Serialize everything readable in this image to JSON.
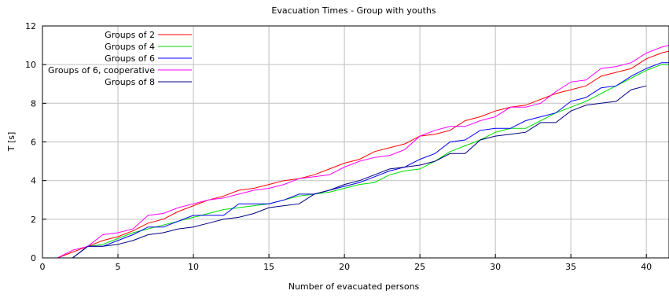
{
  "chart_data": {
    "type": "line",
    "title": "Evacuation Times - Group with youths",
    "xlabel": "Number of evacuated persons",
    "ylabel": "T [s]",
    "xlim": [
      0,
      41.5
    ],
    "ylim": [
      0,
      12
    ],
    "x_ticks": [
      0,
      5,
      10,
      15,
      20,
      25,
      30,
      35,
      40
    ],
    "y_ticks": [
      0,
      2,
      4,
      6,
      8,
      10,
      12
    ],
    "grid": true,
    "legend_position": "top-left",
    "series": [
      {
        "name": "Groups of 2",
        "color": "#ff0000",
        "points": [
          [
            1,
            0.0
          ],
          [
            2,
            0.3
          ],
          [
            3,
            0.6
          ],
          [
            4,
            0.9
          ],
          [
            5,
            1.1
          ],
          [
            6,
            1.4
          ],
          [
            7,
            1.8
          ],
          [
            8,
            2.0
          ],
          [
            9,
            2.4
          ],
          [
            10,
            2.7
          ],
          [
            11,
            3.0
          ],
          [
            12,
            3.2
          ],
          [
            13,
            3.5
          ],
          [
            14,
            3.6
          ],
          [
            15,
            3.8
          ],
          [
            16,
            4.0
          ],
          [
            17,
            4.1
          ],
          [
            18,
            4.3
          ],
          [
            19,
            4.6
          ],
          [
            20,
            4.9
          ],
          [
            21,
            5.1
          ],
          [
            22,
            5.5
          ],
          [
            23,
            5.7
          ],
          [
            24,
            5.9
          ],
          [
            25,
            6.3
          ],
          [
            26,
            6.4
          ],
          [
            27,
            6.6
          ],
          [
            28,
            7.1
          ],
          [
            29,
            7.3
          ],
          [
            30,
            7.6
          ],
          [
            31,
            7.8
          ],
          [
            32,
            7.9
          ],
          [
            33,
            8.2
          ],
          [
            34,
            8.5
          ],
          [
            35,
            8.7
          ],
          [
            36,
            8.9
          ],
          [
            37,
            9.4
          ],
          [
            38,
            9.6
          ],
          [
            39,
            9.8
          ],
          [
            40,
            10.3
          ],
          [
            41,
            10.6
          ],
          [
            41.5,
            10.7
          ]
        ]
      },
      {
        "name": "Groups of 4",
        "color": "#00dd00",
        "points": [
          [
            2,
            0.0
          ],
          [
            3,
            0.6
          ],
          [
            4,
            0.7
          ],
          [
            5,
            1.0
          ],
          [
            6,
            1.3
          ],
          [
            7,
            1.5
          ],
          [
            8,
            1.7
          ],
          [
            9,
            1.9
          ],
          [
            10,
            2.1
          ],
          [
            11,
            2.3
          ],
          [
            12,
            2.5
          ],
          [
            13,
            2.6
          ],
          [
            14,
            2.7
          ],
          [
            15,
            2.8
          ],
          [
            16,
            3.0
          ],
          [
            17,
            3.2
          ],
          [
            18,
            3.3
          ],
          [
            19,
            3.4
          ],
          [
            20,
            3.6
          ],
          [
            21,
            3.8
          ],
          [
            22,
            3.9
          ],
          [
            23,
            4.3
          ],
          [
            24,
            4.5
          ],
          [
            25,
            4.6
          ],
          [
            26,
            5.0
          ],
          [
            27,
            5.5
          ],
          [
            28,
            5.8
          ],
          [
            29,
            6.1
          ],
          [
            30,
            6.5
          ],
          [
            31,
            6.7
          ],
          [
            32,
            6.7
          ],
          [
            33,
            7.1
          ],
          [
            34,
            7.5
          ],
          [
            35,
            7.8
          ],
          [
            36,
            8.1
          ],
          [
            37,
            8.5
          ],
          [
            38,
            8.9
          ],
          [
            39,
            9.3
          ],
          [
            40,
            9.7
          ],
          [
            41,
            10.0
          ],
          [
            41.5,
            10.0
          ]
        ]
      },
      {
        "name": "Groups of 6",
        "color": "#0000ff",
        "points": [
          [
            2,
            0.0
          ],
          [
            3,
            0.6
          ],
          [
            4,
            0.6
          ],
          [
            5,
            0.9
          ],
          [
            6,
            1.2
          ],
          [
            7,
            1.6
          ],
          [
            8,
            1.6
          ],
          [
            9,
            1.9
          ],
          [
            10,
            2.2
          ],
          [
            11,
            2.2
          ],
          [
            12,
            2.2
          ],
          [
            13,
            2.8
          ],
          [
            14,
            2.8
          ],
          [
            15,
            2.8
          ],
          [
            16,
            3.0
          ],
          [
            17,
            3.3
          ],
          [
            18,
            3.3
          ],
          [
            19,
            3.5
          ],
          [
            20,
            3.7
          ],
          [
            21,
            3.9
          ],
          [
            22,
            4.2
          ],
          [
            23,
            4.5
          ],
          [
            24,
            4.7
          ],
          [
            25,
            5.1
          ],
          [
            26,
            5.4
          ],
          [
            27,
            6.0
          ],
          [
            28,
            6.1
          ],
          [
            29,
            6.6
          ],
          [
            30,
            6.7
          ],
          [
            31,
            6.7
          ],
          [
            32,
            7.1
          ],
          [
            33,
            7.3
          ],
          [
            34,
            7.5
          ],
          [
            35,
            8.1
          ],
          [
            36,
            8.3
          ],
          [
            37,
            8.8
          ],
          [
            38,
            8.9
          ],
          [
            39,
            9.4
          ],
          [
            40,
            9.8
          ],
          [
            41,
            10.1
          ],
          [
            41.5,
            10.1
          ]
        ]
      },
      {
        "name": "Groups of 6, cooperative",
        "color": "#ff00ff",
        "points": [
          [
            1,
            0.0
          ],
          [
            2,
            0.4
          ],
          [
            3,
            0.6
          ],
          [
            4,
            1.2
          ],
          [
            5,
            1.3
          ],
          [
            6,
            1.5
          ],
          [
            7,
            2.2
          ],
          [
            8,
            2.3
          ],
          [
            9,
            2.6
          ],
          [
            10,
            2.8
          ],
          [
            11,
            3.0
          ],
          [
            12,
            3.1
          ],
          [
            13,
            3.3
          ],
          [
            14,
            3.5
          ],
          [
            15,
            3.6
          ],
          [
            16,
            3.8
          ],
          [
            17,
            4.1
          ],
          [
            18,
            4.2
          ],
          [
            19,
            4.3
          ],
          [
            20,
            4.7
          ],
          [
            21,
            5.0
          ],
          [
            22,
            5.2
          ],
          [
            23,
            5.3
          ],
          [
            24,
            5.6
          ],
          [
            25,
            6.3
          ],
          [
            26,
            6.6
          ],
          [
            27,
            6.8
          ],
          [
            28,
            6.8
          ],
          [
            29,
            7.1
          ],
          [
            30,
            7.3
          ],
          [
            31,
            7.8
          ],
          [
            32,
            7.8
          ],
          [
            33,
            8.0
          ],
          [
            34,
            8.6
          ],
          [
            35,
            9.1
          ],
          [
            36,
            9.2
          ],
          [
            37,
            9.8
          ],
          [
            38,
            9.9
          ],
          [
            39,
            10.1
          ],
          [
            40,
            10.6
          ],
          [
            41,
            10.9
          ],
          [
            41.5,
            11.0
          ]
        ]
      },
      {
        "name": "Groups of 8",
        "color": "#000080",
        "points": [
          [
            1,
            0.0
          ],
          [
            2,
            0.0
          ],
          [
            3,
            0.6
          ],
          [
            4,
            0.6
          ],
          [
            5,
            0.7
          ],
          [
            6,
            0.9
          ],
          [
            7,
            1.2
          ],
          [
            8,
            1.3
          ],
          [
            9,
            1.5
          ],
          [
            10,
            1.6
          ],
          [
            11,
            1.8
          ],
          [
            12,
            2.0
          ],
          [
            13,
            2.1
          ],
          [
            14,
            2.3
          ],
          [
            15,
            2.6
          ],
          [
            16,
            2.7
          ],
          [
            17,
            2.8
          ],
          [
            18,
            3.3
          ],
          [
            19,
            3.5
          ],
          [
            20,
            3.8
          ],
          [
            21,
            4.0
          ],
          [
            22,
            4.3
          ],
          [
            23,
            4.6
          ],
          [
            24,
            4.7
          ],
          [
            25,
            4.8
          ],
          [
            26,
            5.0
          ],
          [
            27,
            5.4
          ],
          [
            28,
            5.4
          ],
          [
            29,
            6.1
          ],
          [
            30,
            6.3
          ],
          [
            31,
            6.4
          ],
          [
            32,
            6.5
          ],
          [
            33,
            7.0
          ],
          [
            34,
            7.0
          ],
          [
            35,
            7.6
          ],
          [
            36,
            7.9
          ],
          [
            37,
            8.0
          ],
          [
            38,
            8.1
          ],
          [
            39,
            8.7
          ],
          [
            40,
            8.9
          ]
        ]
      }
    ]
  }
}
